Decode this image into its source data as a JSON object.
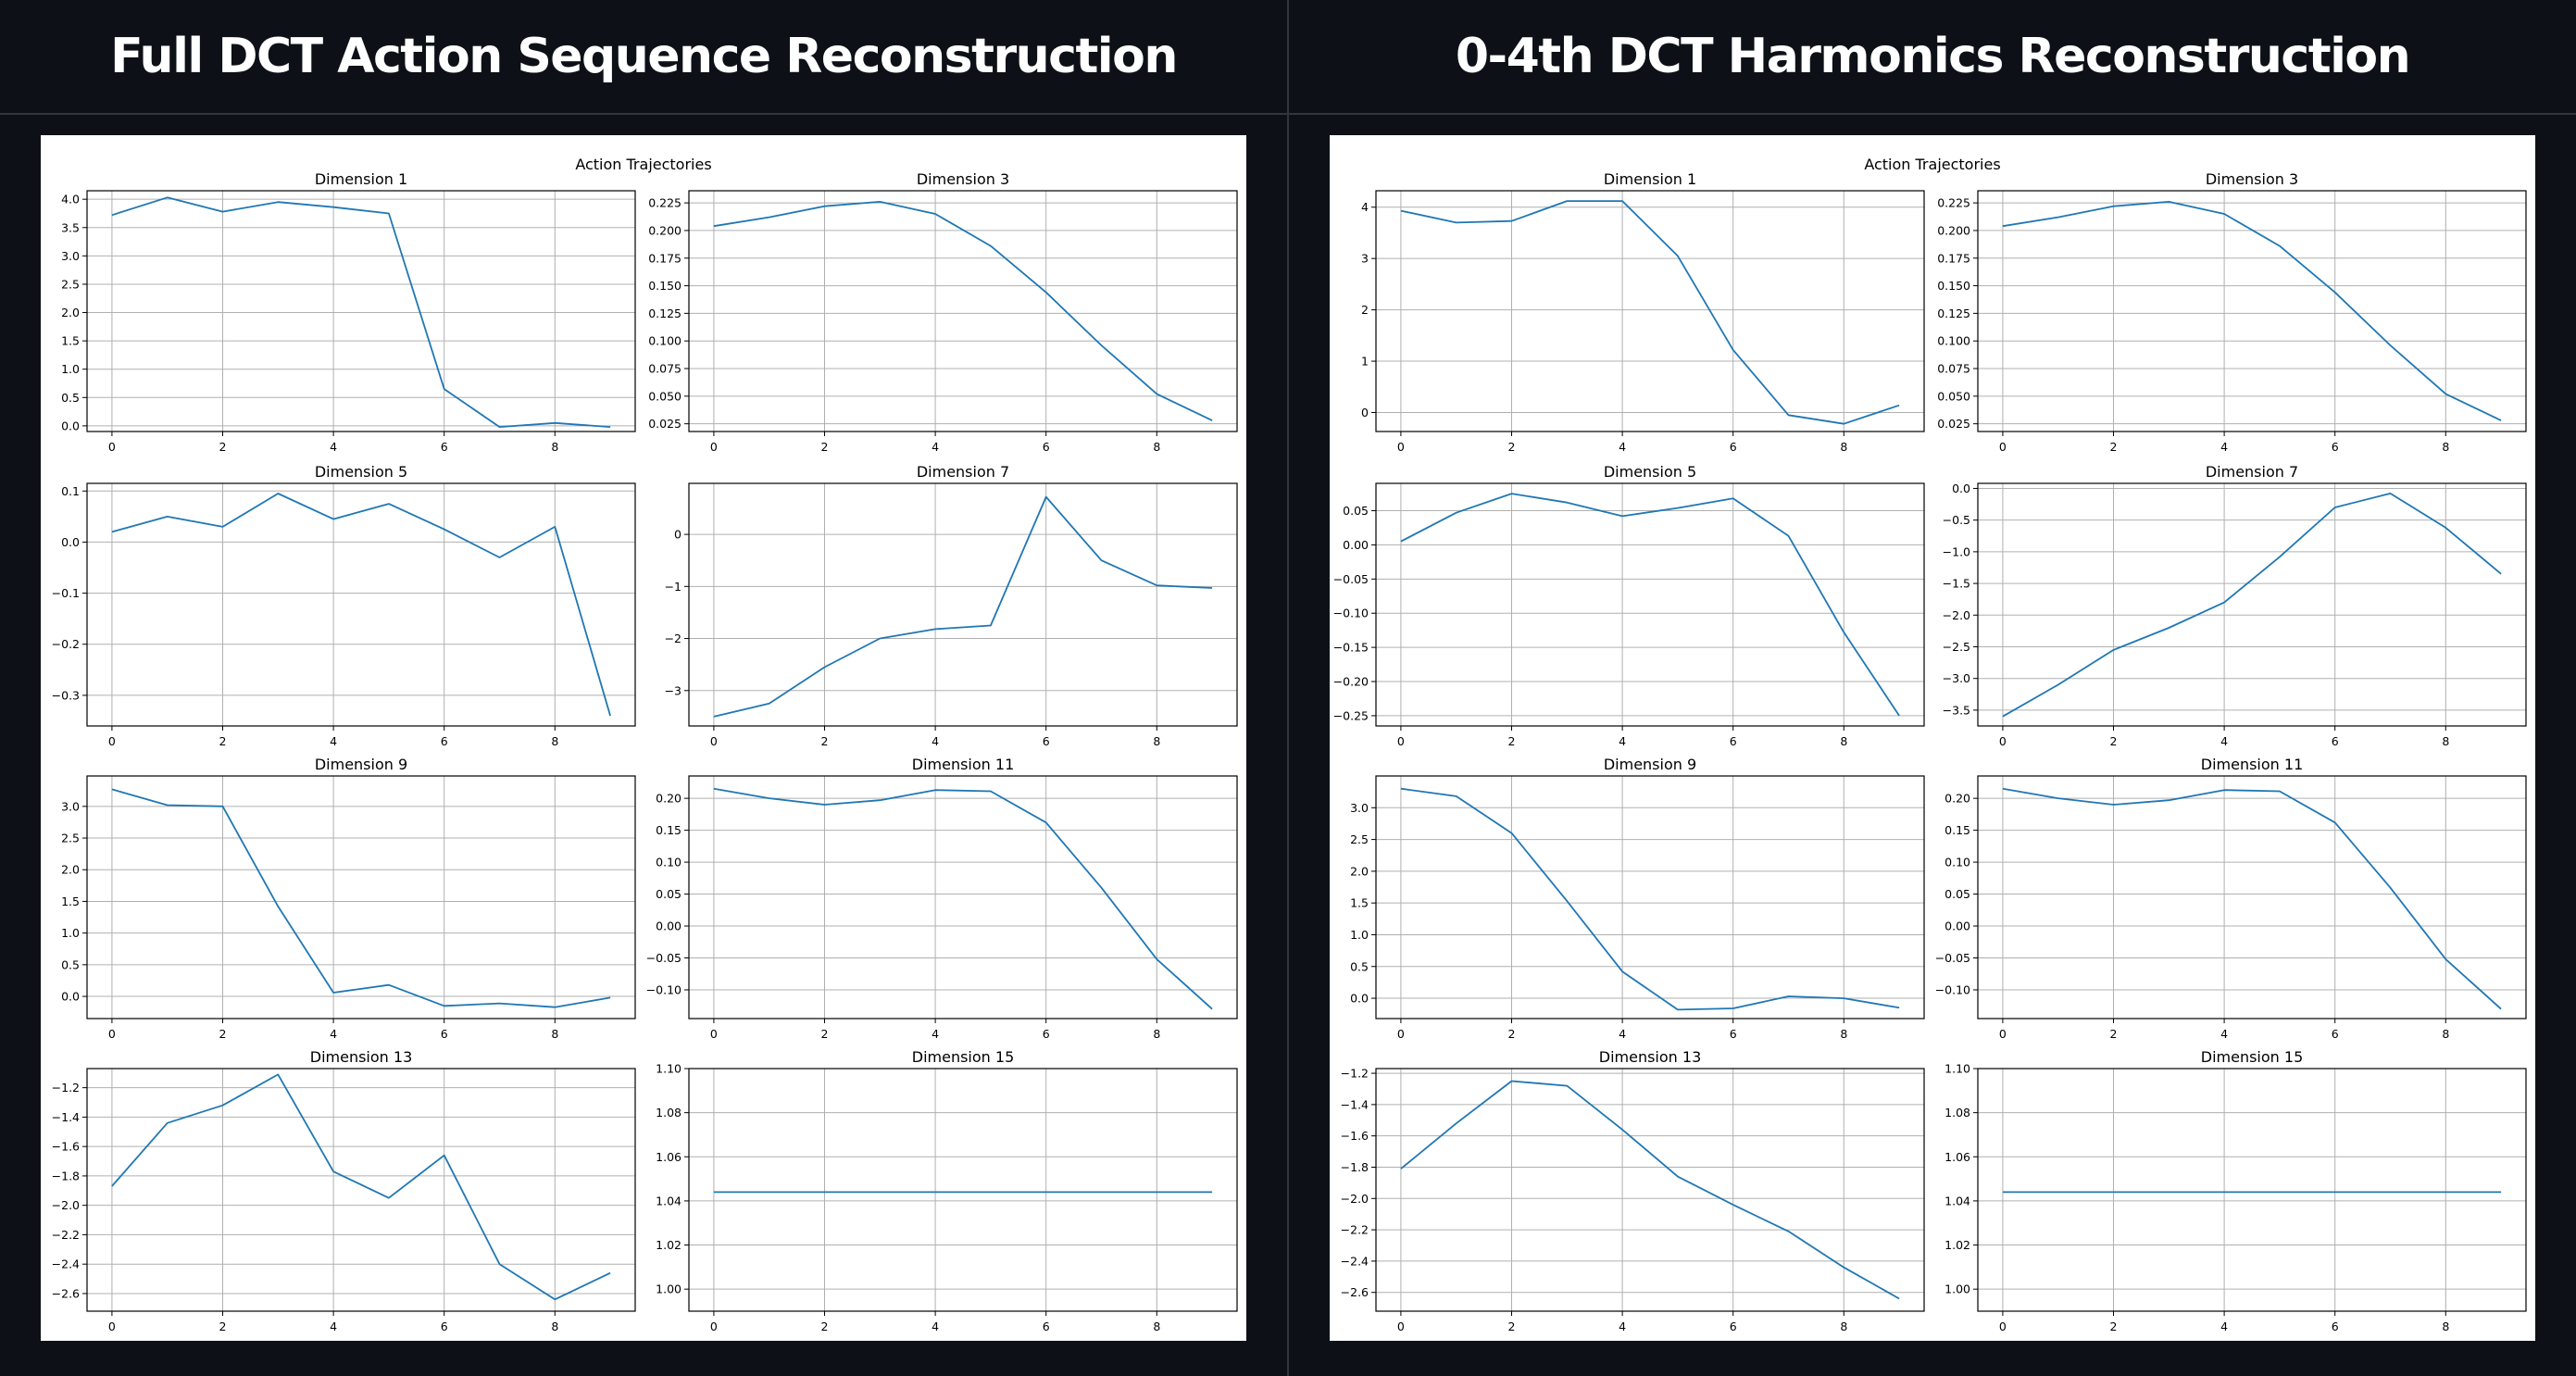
{
  "panels": {
    "left": {
      "title": "Full DCT Action Sequence Reconstruction"
    },
    "right": {
      "title": "0-4th DCT Harmonics Reconstruction"
    }
  },
  "colors": {
    "background": "#0d1117",
    "line": "#1f77b4"
  },
  "chart_data": [
    {
      "type": "line",
      "panel": "left",
      "title": "Action Trajectories",
      "grid": true,
      "subplots": [
        {
          "title": "Dimension 1",
          "x": [
            0,
            1,
            2,
            3,
            4,
            5,
            6,
            7,
            8,
            9
          ],
          "values": [
            3.72,
            4.03,
            3.78,
            3.95,
            3.86,
            3.75,
            0.65,
            -0.02,
            0.05,
            -0.02
          ],
          "ylim": [
            -0.1,
            4.15
          ],
          "yticks": [
            "0.0",
            "0.5",
            "1.0",
            "1.5",
            "2.0",
            "2.5",
            "3.0",
            "3.5",
            "4.0"
          ],
          "xticks": [
            "0",
            "2",
            "4",
            "6",
            "8"
          ]
        },
        {
          "title": "Dimension 3",
          "x": [
            0,
            1,
            2,
            3,
            4,
            5,
            6,
            7,
            8,
            9
          ],
          "values": [
            0.204,
            0.212,
            0.222,
            0.226,
            0.215,
            0.186,
            0.144,
            0.096,
            0.052,
            0.028
          ],
          "ylim": [
            0.018,
            0.236
          ],
          "yticks": [
            "0.025",
            "0.050",
            "0.075",
            "0.100",
            "0.125",
            "0.150",
            "0.175",
            "0.200",
            "0.225"
          ],
          "xticks": [
            "0",
            "2",
            "4",
            "6",
            "8"
          ]
        },
        {
          "title": "Dimension 5",
          "x": [
            0,
            1,
            2,
            3,
            4,
            5,
            6,
            7,
            8,
            9
          ],
          "values": [
            0.02,
            0.05,
            0.03,
            0.095,
            0.045,
            0.075,
            0.025,
            -0.03,
            0.03,
            -0.34
          ],
          "ylim": [
            -0.36,
            0.115
          ],
          "yticks": [
            "−0.3",
            "−0.2",
            "−0.1",
            "0.0",
            "0.1"
          ],
          "xticks": [
            "0",
            "2",
            "4",
            "6",
            "8"
          ]
        },
        {
          "title": "Dimension 7",
          "x": [
            0,
            1,
            2,
            3,
            4,
            5,
            6,
            7,
            8,
            9
          ],
          "values": [
            -3.5,
            -3.25,
            -2.55,
            -2.0,
            -1.82,
            -1.75,
            0.72,
            -0.5,
            -0.98,
            -1.03
          ],
          "ylim": [
            -3.68,
            0.98
          ],
          "yticks": [
            "−3",
            "−2",
            "−1",
            "0"
          ],
          "xticks": [
            "0",
            "2",
            "4",
            "6",
            "8"
          ]
        },
        {
          "title": "Dimension 9",
          "x": [
            0,
            1,
            2,
            3,
            4,
            5,
            6,
            7,
            8,
            9
          ],
          "values": [
            3.27,
            3.02,
            3.0,
            1.42,
            0.06,
            0.18,
            -0.15,
            -0.11,
            -0.17,
            -0.02
          ],
          "ylim": [
            -0.35,
            3.48
          ],
          "yticks": [
            "0.0",
            "0.5",
            "1.0",
            "1.5",
            "2.0",
            "2.5",
            "3.0"
          ],
          "xticks": [
            "0",
            "2",
            "4",
            "6",
            "8"
          ]
        },
        {
          "title": "Dimension 11",
          "x": [
            0,
            1,
            2,
            3,
            4,
            5,
            6,
            7,
            8,
            9
          ],
          "values": [
            0.215,
            0.2,
            0.19,
            0.197,
            0.213,
            0.211,
            0.162,
            0.06,
            -0.052,
            -0.13
          ],
          "ylim": [
            -0.145,
            0.235
          ],
          "yticks": [
            "−0.10",
            "−0.05",
            "0.00",
            "0.05",
            "0.10",
            "0.15",
            "0.20"
          ],
          "xticks": [
            "0",
            "2",
            "4",
            "6",
            "8"
          ]
        },
        {
          "title": "Dimension 13",
          "x": [
            0,
            1,
            2,
            3,
            4,
            5,
            6,
            7,
            8,
            9
          ],
          "values": [
            -1.87,
            -1.44,
            -1.32,
            -1.11,
            -1.77,
            -1.95,
            -1.66,
            -2.4,
            -2.64,
            -2.46
          ],
          "ylim": [
            -2.72,
            -1.07
          ],
          "yticks": [
            "−2.6",
            "−2.4",
            "−2.2",
            "−2.0",
            "−1.8",
            "−1.6",
            "−1.4",
            "−1.2"
          ],
          "xticks": [
            "0",
            "2",
            "4",
            "6",
            "8"
          ]
        },
        {
          "title": "Dimension 15",
          "x": [
            0,
            1,
            2,
            3,
            4,
            5,
            6,
            7,
            8,
            9
          ],
          "values": [
            1.044,
            1.044,
            1.044,
            1.044,
            1.044,
            1.044,
            1.044,
            1.044,
            1.044,
            1.044
          ],
          "ylim": [
            0.99,
            1.1
          ],
          "yticks": [
            "1.00",
            "1.02",
            "1.04",
            "1.06",
            "1.08",
            "1.10"
          ],
          "xticks": [
            "0",
            "2",
            "4",
            "6",
            "8"
          ]
        }
      ]
    },
    {
      "type": "line",
      "panel": "right",
      "title": "Action Trajectories",
      "grid": true,
      "subplots": [
        {
          "title": "Dimension 1",
          "x": [
            0,
            1,
            2,
            3,
            4,
            5,
            6,
            7,
            8,
            9
          ],
          "values": [
            3.93,
            3.7,
            3.73,
            4.12,
            4.12,
            3.05,
            1.22,
            -0.05,
            -0.22,
            0.14
          ],
          "ylim": [
            -0.37,
            4.32
          ],
          "yticks": [
            "0",
            "1",
            "2",
            "3",
            "4"
          ],
          "xticks": [
            "0",
            "2",
            "4",
            "6",
            "8"
          ]
        },
        {
          "title": "Dimension 3",
          "x": [
            0,
            1,
            2,
            3,
            4,
            5,
            6,
            7,
            8,
            9
          ],
          "values": [
            0.204,
            0.212,
            0.222,
            0.226,
            0.215,
            0.186,
            0.144,
            0.096,
            0.052,
            0.028
          ],
          "ylim": [
            0.018,
            0.236
          ],
          "yticks": [
            "0.025",
            "0.050",
            "0.075",
            "0.100",
            "0.125",
            "0.150",
            "0.175",
            "0.200",
            "0.225"
          ],
          "xticks": [
            "0",
            "2",
            "4",
            "6",
            "8"
          ]
        },
        {
          "title": "Dimension 5",
          "x": [
            0,
            1,
            2,
            3,
            4,
            5,
            6,
            7,
            8,
            9
          ],
          "values": [
            0.005,
            0.047,
            0.075,
            0.062,
            0.042,
            0.054,
            0.068,
            0.013,
            -0.128,
            -0.25
          ],
          "ylim": [
            -0.265,
            0.09
          ],
          "yticks": [
            "−0.25",
            "−0.20",
            "−0.15",
            "−0.10",
            "−0.05",
            "0.00",
            "0.05"
          ],
          "xticks": [
            "0",
            "2",
            "4",
            "6",
            "8"
          ]
        },
        {
          "title": "Dimension 7",
          "x": [
            0,
            1,
            2,
            3,
            4,
            5,
            6,
            7,
            8,
            9
          ],
          "values": [
            -3.6,
            -3.1,
            -2.55,
            -2.2,
            -1.8,
            -1.08,
            -0.3,
            -0.08,
            -0.62,
            -1.35
          ],
          "ylim": [
            -3.75,
            0.08
          ],
          "yticks": [
            "−3.5",
            "−3.0",
            "−2.5",
            "−2.0",
            "−1.5",
            "−1.0",
            "−0.5",
            "0.0"
          ],
          "xticks": [
            "0",
            "2",
            "4",
            "6",
            "8"
          ]
        },
        {
          "title": "Dimension 9",
          "x": [
            0,
            1,
            2,
            3,
            4,
            5,
            6,
            7,
            8,
            9
          ],
          "values": [
            3.3,
            3.18,
            2.6,
            1.53,
            0.42,
            -0.18,
            -0.16,
            0.03,
            0.0,
            -0.15
          ],
          "ylim": [
            -0.32,
            3.5
          ],
          "yticks": [
            "0.0",
            "0.5",
            "1.0",
            "1.5",
            "2.0",
            "2.5",
            "3.0"
          ],
          "xticks": [
            "0",
            "2",
            "4",
            "6",
            "8"
          ]
        },
        {
          "title": "Dimension 11",
          "x": [
            0,
            1,
            2,
            3,
            4,
            5,
            6,
            7,
            8,
            9
          ],
          "values": [
            0.215,
            0.2,
            0.19,
            0.197,
            0.213,
            0.211,
            0.162,
            0.06,
            -0.052,
            -0.13
          ],
          "ylim": [
            -0.145,
            0.235
          ],
          "yticks": [
            "−0.10",
            "−0.05",
            "0.00",
            "0.05",
            "0.10",
            "0.15",
            "0.20"
          ],
          "xticks": [
            "0",
            "2",
            "4",
            "6",
            "8"
          ]
        },
        {
          "title": "Dimension 13",
          "x": [
            0,
            1,
            2,
            3,
            4,
            5,
            6,
            7,
            8,
            9
          ],
          "values": [
            -1.81,
            -1.52,
            -1.25,
            -1.28,
            -1.56,
            -1.86,
            -2.04,
            -2.21,
            -2.44,
            -2.64
          ],
          "ylim": [
            -2.72,
            -1.17
          ],
          "yticks": [
            "−2.6",
            "−2.4",
            "−2.2",
            "−2.0",
            "−1.8",
            "−1.6",
            "−1.4",
            "−1.2"
          ],
          "xticks": [
            "0",
            "2",
            "4",
            "6",
            "8"
          ]
        },
        {
          "title": "Dimension 15",
          "x": [
            0,
            1,
            2,
            3,
            4,
            5,
            6,
            7,
            8,
            9
          ],
          "values": [
            1.044,
            1.044,
            1.044,
            1.044,
            1.044,
            1.044,
            1.044,
            1.044,
            1.044,
            1.044
          ],
          "ylim": [
            0.99,
            1.1
          ],
          "yticks": [
            "1.00",
            "1.02",
            "1.04",
            "1.06",
            "1.08",
            "1.10"
          ],
          "xticks": [
            "0",
            "2",
            "4",
            "6",
            "8"
          ]
        }
      ]
    }
  ]
}
